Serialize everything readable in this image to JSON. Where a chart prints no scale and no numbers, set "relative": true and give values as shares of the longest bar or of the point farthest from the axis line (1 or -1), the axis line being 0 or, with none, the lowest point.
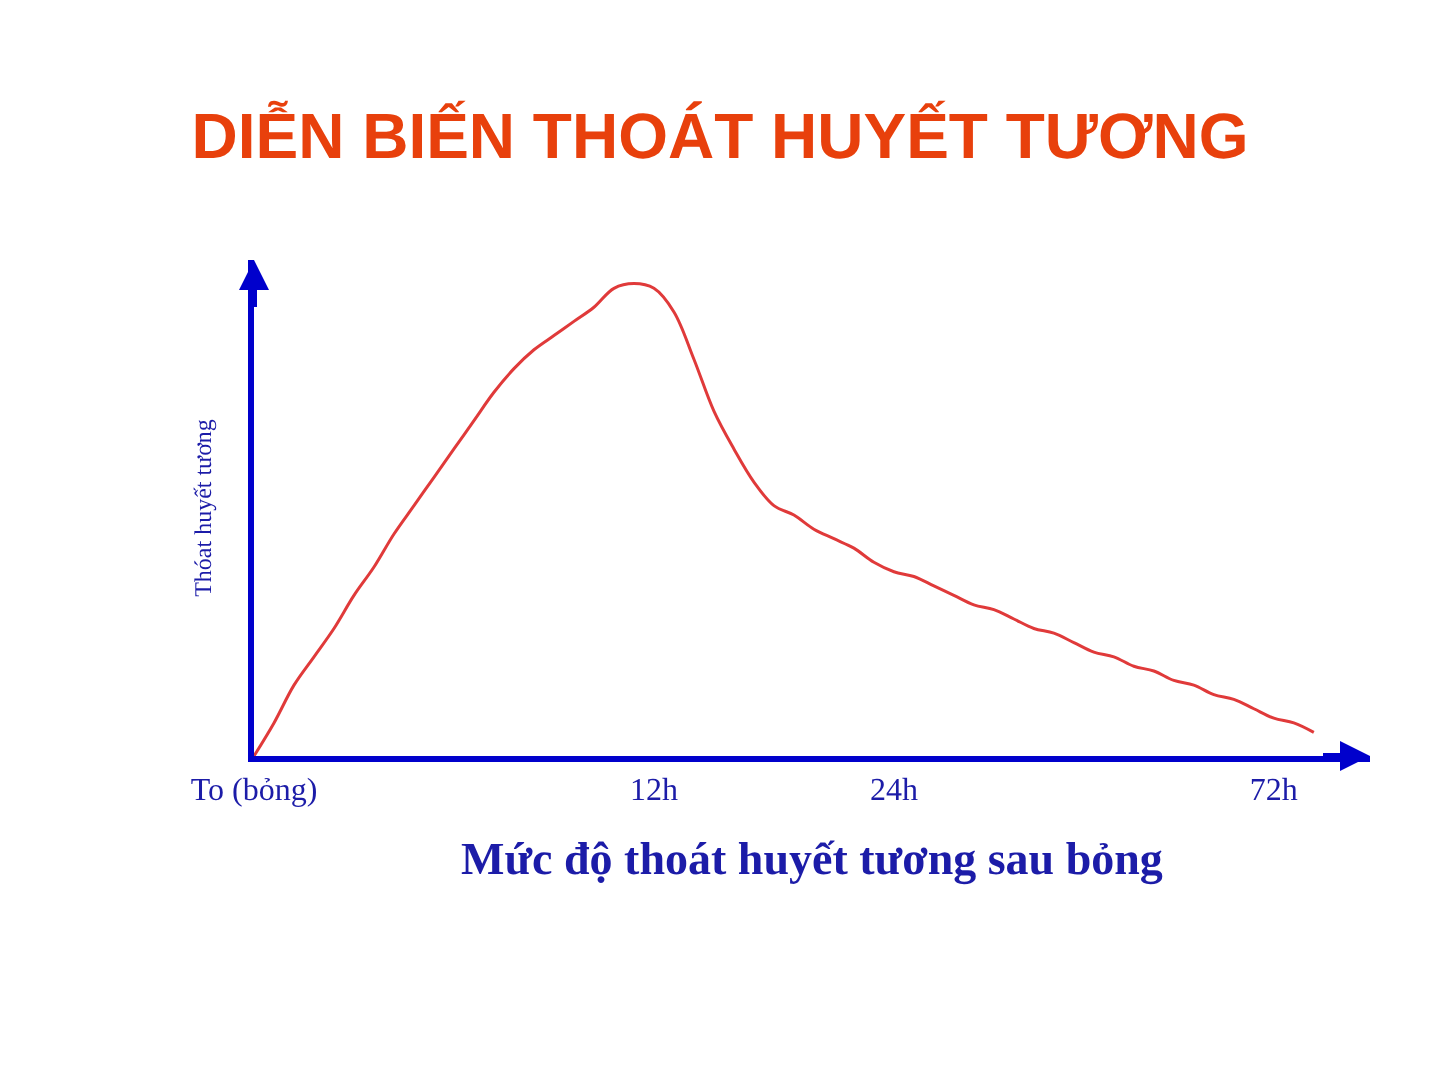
{
  "chart_data": {
    "type": "line",
    "title": "DIỄN BIẾN THOÁT HUYẾT TƯƠNG",
    "xlabel": "Mức độ thoát huyết tương sau bỏng",
    "ylabel": "Thóat huyết tương",
    "relative": true,
    "marker": "none",
    "line_style": "solid",
    "categories": [
      "To (bỏng)",
      null,
      null,
      null,
      null,
      null,
      null,
      null,
      null,
      null,
      null,
      null,
      null,
      null,
      null,
      null,
      null,
      null,
      null,
      null,
      "12h",
      null,
      null,
      null,
      null,
      null,
      null,
      null,
      null,
      null,
      null,
      null,
      "24h",
      null,
      null,
      null,
      null,
      null,
      null,
      null,
      null,
      null,
      null,
      null,
      null,
      null,
      null,
      null,
      null,
      null,
      null,
      "72h",
      null,
      null
    ],
    "series": [
      {
        "color": "#e03a3a",
        "values": [
          0,
          0.07,
          0.15,
          0.21,
          0.27,
          0.34,
          0.4,
          0.47,
          0.53,
          0.59,
          0.65,
          0.71,
          0.77,
          0.82,
          0.86,
          0.89,
          0.92,
          0.95,
          0.99,
          1,
          0.99,
          0.94,
          0.84,
          0.73,
          0.65,
          0.58,
          0.53,
          0.51,
          0.48,
          0.46,
          0.44,
          0.41,
          0.39,
          0.38,
          0.36,
          0.34,
          0.32,
          0.31,
          0.29,
          0.27,
          0.26,
          0.24,
          0.22,
          0.21,
          0.19,
          0.18,
          0.16,
          0.15,
          0.13,
          0.12,
          0.1,
          0.08,
          0.07,
          0.05
        ]
      }
    ]
  }
}
